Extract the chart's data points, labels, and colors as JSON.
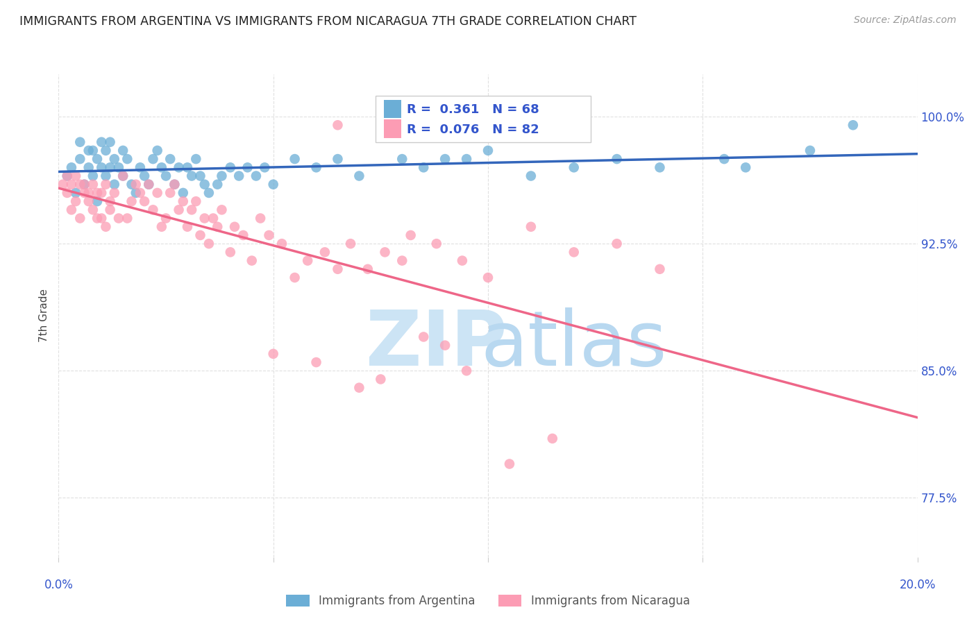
{
  "title": "IMMIGRANTS FROM ARGENTINA VS IMMIGRANTS FROM NICARAGUA 7TH GRADE CORRELATION CHART",
  "source": "Source: ZipAtlas.com",
  "ylabel": "7th Grade",
  "xlim": [
    0.0,
    0.2
  ],
  "ylim": [
    74.0,
    102.5
  ],
  "argentina_color": "#6baed6",
  "nicaragua_color": "#fc9cb4",
  "argentina_R": 0.361,
  "argentina_N": 68,
  "nicaragua_R": 0.076,
  "nicaragua_N": 82,
  "argentina_line_color": "#3366bb",
  "nicaragua_line_color": "#ee6688",
  "legend_label_argentina": "Immigrants from Argentina",
  "legend_label_nicaragua": "Immigrants from Nicaragua",
  "argentina_x": [
    0.002,
    0.003,
    0.004,
    0.005,
    0.005,
    0.006,
    0.007,
    0.007,
    0.008,
    0.008,
    0.009,
    0.009,
    0.01,
    0.01,
    0.011,
    0.011,
    0.012,
    0.012,
    0.013,
    0.013,
    0.014,
    0.015,
    0.015,
    0.016,
    0.017,
    0.018,
    0.019,
    0.02,
    0.021,
    0.022,
    0.023,
    0.024,
    0.025,
    0.026,
    0.027,
    0.028,
    0.029,
    0.03,
    0.031,
    0.032,
    0.033,
    0.034,
    0.035,
    0.037,
    0.038,
    0.04,
    0.042,
    0.044,
    0.046,
    0.048,
    0.05,
    0.055,
    0.06,
    0.065,
    0.07,
    0.08,
    0.085,
    0.09,
    0.095,
    0.1,
    0.11,
    0.12,
    0.13,
    0.14,
    0.155,
    0.16,
    0.175,
    0.185
  ],
  "argentina_y": [
    96.5,
    97.0,
    95.5,
    97.5,
    98.5,
    96.0,
    97.0,
    98.0,
    96.5,
    98.0,
    95.0,
    97.5,
    97.0,
    98.5,
    96.5,
    98.0,
    97.0,
    98.5,
    96.0,
    97.5,
    97.0,
    96.5,
    98.0,
    97.5,
    96.0,
    95.5,
    97.0,
    96.5,
    96.0,
    97.5,
    98.0,
    97.0,
    96.5,
    97.5,
    96.0,
    97.0,
    95.5,
    97.0,
    96.5,
    97.5,
    96.5,
    96.0,
    95.5,
    96.0,
    96.5,
    97.0,
    96.5,
    97.0,
    96.5,
    97.0,
    96.0,
    97.5,
    97.0,
    97.5,
    96.5,
    97.5,
    97.0,
    97.5,
    97.5,
    98.0,
    96.5,
    97.0,
    97.5,
    97.0,
    97.5,
    97.0,
    98.0,
    99.5
  ],
  "nicaragua_x": [
    0.001,
    0.002,
    0.002,
    0.003,
    0.003,
    0.004,
    0.004,
    0.005,
    0.005,
    0.006,
    0.006,
    0.007,
    0.007,
    0.008,
    0.008,
    0.009,
    0.009,
    0.01,
    0.01,
    0.011,
    0.011,
    0.012,
    0.012,
    0.013,
    0.014,
    0.015,
    0.016,
    0.017,
    0.018,
    0.019,
    0.02,
    0.021,
    0.022,
    0.023,
    0.024,
    0.025,
    0.026,
    0.027,
    0.028,
    0.029,
    0.03,
    0.031,
    0.032,
    0.033,
    0.034,
    0.035,
    0.036,
    0.037,
    0.038,
    0.04,
    0.041,
    0.043,
    0.045,
    0.047,
    0.049,
    0.052,
    0.055,
    0.058,
    0.062,
    0.065,
    0.068,
    0.072,
    0.076,
    0.082,
    0.088,
    0.094,
    0.1,
    0.11,
    0.12,
    0.13,
    0.14,
    0.095,
    0.075,
    0.05,
    0.06,
    0.07,
    0.115,
    0.105,
    0.09,
    0.085,
    0.08,
    0.065
  ],
  "nicaragua_y": [
    96.0,
    95.5,
    96.5,
    94.5,
    96.0,
    95.0,
    96.5,
    94.0,
    96.0,
    95.5,
    96.0,
    95.0,
    95.5,
    96.0,
    94.5,
    95.5,
    94.0,
    95.5,
    94.0,
    96.0,
    93.5,
    95.0,
    94.5,
    95.5,
    94.0,
    96.5,
    94.0,
    95.0,
    96.0,
    95.5,
    95.0,
    96.0,
    94.5,
    95.5,
    93.5,
    94.0,
    95.5,
    96.0,
    94.5,
    95.0,
    93.5,
    94.5,
    95.0,
    93.0,
    94.0,
    92.5,
    94.0,
    93.5,
    94.5,
    92.0,
    93.5,
    93.0,
    91.5,
    94.0,
    93.0,
    92.5,
    90.5,
    91.5,
    92.0,
    91.0,
    92.5,
    91.0,
    92.0,
    93.0,
    92.5,
    91.5,
    90.5,
    93.5,
    92.0,
    92.5,
    91.0,
    85.0,
    84.5,
    86.0,
    85.5,
    84.0,
    81.0,
    79.5,
    86.5,
    87.0,
    91.5,
    99.5
  ],
  "watermark_zip_color": "#cce4f5",
  "watermark_atlas_color": "#b8d8f0",
  "background_color": "#ffffff",
  "text_color_blue": "#3355cc",
  "grid_color": "#e0e0e0"
}
